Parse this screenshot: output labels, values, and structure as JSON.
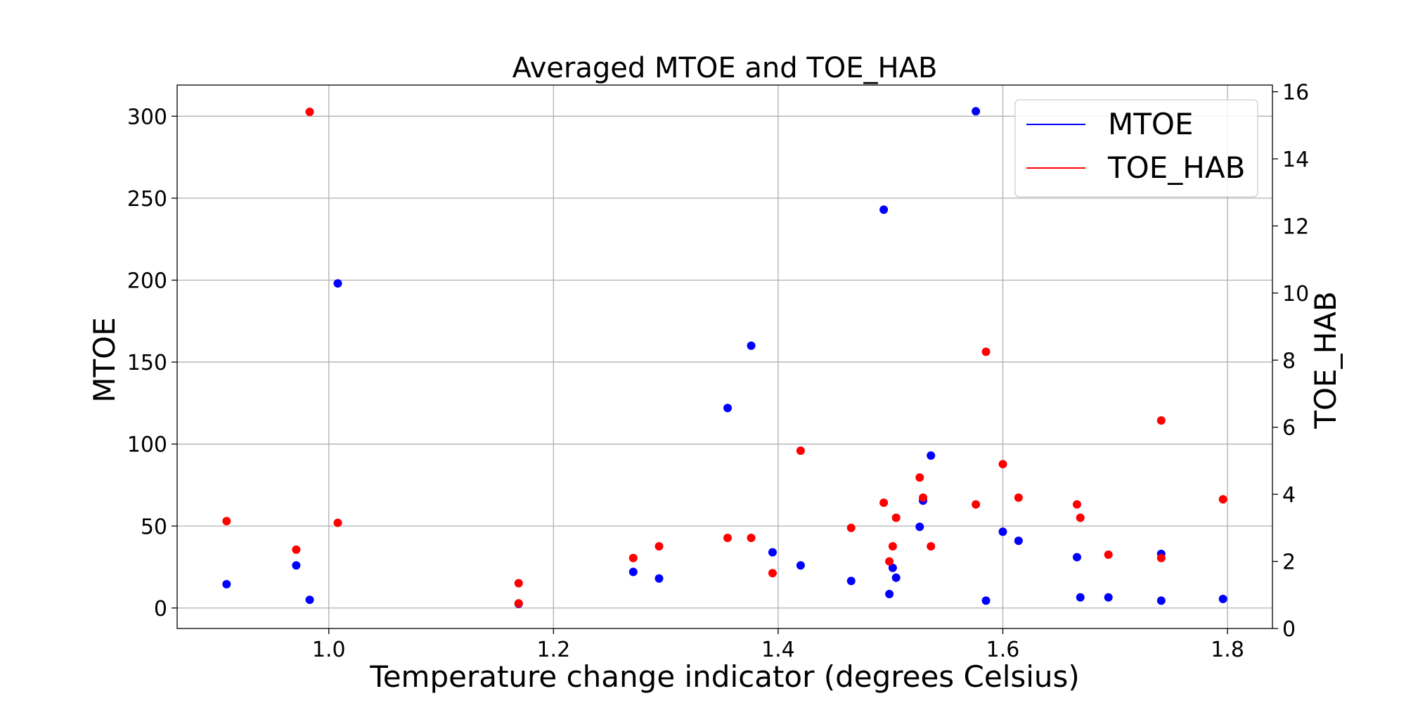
{
  "chart_data": {
    "type": "scatter",
    "title": "Averaged MTOE and TOE_HAB",
    "xlabel": "Temperature change indicator (degrees Celsius)",
    "ylabel_left": "MTOE",
    "ylabel_right": "TOE_HAB",
    "xlim": [
      0.865,
      1.84
    ],
    "ylim_left": [
      -12.5,
      319
    ],
    "ylim_right": [
      0,
      16.2
    ],
    "x_ticks": [
      1.0,
      1.2,
      1.4,
      1.6,
      1.8
    ],
    "x_tick_labels": [
      "1.0",
      "1.2",
      "1.4",
      "1.6",
      "1.8"
    ],
    "y_left_ticks": [
      0,
      50,
      100,
      150,
      200,
      250,
      300
    ],
    "y_left_tick_labels": [
      "0",
      "50",
      "100",
      "150",
      "200",
      "250",
      "300"
    ],
    "y_right_ticks": [
      0,
      2,
      4,
      6,
      8,
      10,
      12,
      14,
      16
    ],
    "y_right_tick_labels": [
      "0",
      "2",
      "4",
      "6",
      "8",
      "10",
      "12",
      "14",
      "16"
    ],
    "grid": true,
    "legend_position": "top-right",
    "series": [
      {
        "name": "MTOE",
        "color": "#0000ff",
        "axis": "left",
        "x": [
          0.909,
          0.971,
          0.983,
          1.008,
          1.169,
          1.271,
          1.294,
          1.355,
          1.376,
          1.395,
          1.42,
          1.465,
          1.494,
          1.499,
          1.502,
          1.505,
          1.526,
          1.529,
          1.536,
          1.576,
          1.585,
          1.6,
          1.614,
          1.666,
          1.669,
          1.694,
          1.741,
          1.741,
          1.796
        ],
        "y": [
          14.5,
          26,
          5,
          198,
          2.5,
          22,
          18,
          122,
          160,
          34,
          26,
          16.5,
          243,
          8.5,
          24.5,
          18.5,
          49.5,
          65.5,
          93,
          303,
          4.5,
          46.5,
          41,
          31,
          6.5,
          6.5,
          4.5,
          33,
          5.5
        ]
      },
      {
        "name": "TOE_HAB",
        "color": "#ff0000",
        "axis": "right",
        "x": [
          0.909,
          0.971,
          0.983,
          1.008,
          1.169,
          1.169,
          1.271,
          1.294,
          1.355,
          1.376,
          1.395,
          1.42,
          1.465,
          1.494,
          1.499,
          1.502,
          1.505,
          1.526,
          1.529,
          1.536,
          1.576,
          1.585,
          1.6,
          1.614,
          1.666,
          1.669,
          1.694,
          1.741,
          1.741,
          1.796
        ],
        "y": [
          3.2,
          2.35,
          15.4,
          3.15,
          0.75,
          1.35,
          2.1,
          2.45,
          2.7,
          2.7,
          1.65,
          5.3,
          3.0,
          3.75,
          2.0,
          2.45,
          3.3,
          4.5,
          3.9,
          2.45,
          3.7,
          8.25,
          4.9,
          3.9,
          3.7,
          3.3,
          2.2,
          2.1,
          6.2,
          3.85
        ]
      }
    ]
  }
}
